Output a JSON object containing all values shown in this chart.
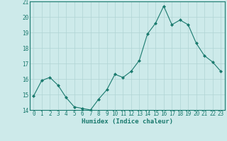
{
  "x": [
    0,
    1,
    2,
    3,
    4,
    5,
    6,
    7,
    8,
    9,
    10,
    11,
    12,
    13,
    14,
    15,
    16,
    17,
    18,
    19,
    20,
    21,
    22,
    23
  ],
  "y": [
    14.9,
    15.9,
    16.1,
    15.6,
    14.8,
    14.2,
    14.1,
    14.0,
    14.7,
    15.3,
    16.3,
    16.1,
    16.5,
    17.2,
    18.9,
    19.6,
    20.7,
    19.5,
    19.8,
    19.5,
    18.3,
    17.5,
    17.1,
    16.5
  ],
  "line_color": "#1a7a6e",
  "marker": "D",
  "marker_size": 2.0,
  "bg_color": "#cdeaea",
  "grid_color": "#b0d4d4",
  "xlabel": "Humidex (Indice chaleur)",
  "xlabel_fontsize": 6.5,
  "tick_fontsize": 5.5,
  "ylim": [
    14,
    21
  ],
  "xlim": [
    -0.5,
    23.5
  ],
  "yticks": [
    14,
    15,
    16,
    17,
    18,
    19,
    20,
    21
  ],
  "xticks": [
    0,
    1,
    2,
    3,
    4,
    5,
    6,
    7,
    8,
    9,
    10,
    11,
    12,
    13,
    14,
    15,
    16,
    17,
    18,
    19,
    20,
    21,
    22,
    23
  ]
}
